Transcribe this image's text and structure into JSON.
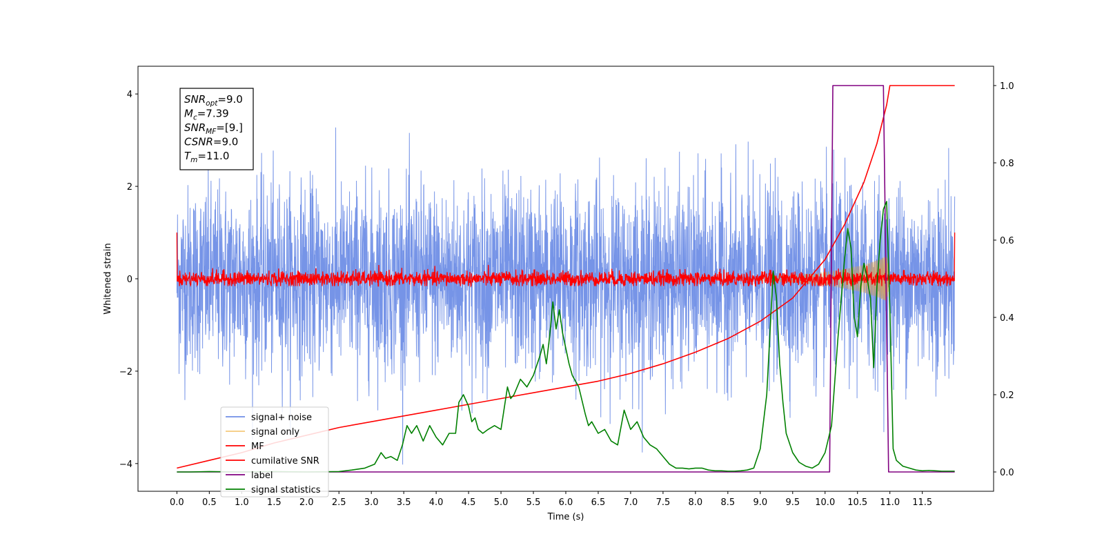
{
  "chart_data": {
    "type": "line",
    "xlabel": "Time (s)",
    "ylabel_left": "Whitened strain",
    "ylabel_right": "",
    "xlim": [
      -0.6,
      12.6
    ],
    "ylim_left": [
      -4.6,
      4.6
    ],
    "ylim_right": [
      -0.05,
      1.05
    ],
    "x_ticks": [
      0.0,
      0.5,
      1.0,
      1.5,
      2.0,
      2.5,
      3.0,
      3.5,
      4.0,
      4.5,
      5.0,
      5.5,
      6.0,
      6.5,
      7.0,
      7.5,
      8.0,
      8.5,
      9.0,
      9.5,
      10.0,
      10.5,
      11.0,
      11.5
    ],
    "x_tick_labels": [
      "0.0",
      "0.5",
      "1.0",
      "1.5",
      "2.0",
      "2.5",
      "3.0",
      "3.5",
      "4.0",
      "4.5",
      "5.0",
      "5.5",
      "6.0",
      "6.5",
      "7.0",
      "7.5",
      "8.0",
      "8.5",
      "9.0",
      "9.5",
      "10.0",
      "10.5",
      "11.0",
      "11.5"
    ],
    "y_left_ticks": [
      -4,
      -2,
      0,
      2,
      4
    ],
    "y_left_tick_labels": [
      "−4",
      "−2",
      "0",
      "2",
      "4"
    ],
    "y_right_ticks": [
      0.0,
      0.2,
      0.4,
      0.6,
      0.8,
      1.0
    ],
    "y_right_tick_labels": [
      "0.0",
      "0.2",
      "0.4",
      "0.6",
      "0.8",
      "1.0"
    ],
    "grid": false,
    "legend_position": "lower-left",
    "info_box": {
      "position": "top-left",
      "lines": [
        {
          "main": "SNR",
          "sub": "opt",
          "rest": "=9.0"
        },
        {
          "main": "M",
          "sub": "c",
          "rest": "=7.39"
        },
        {
          "main": "SNR",
          "sub": "MF",
          "rest": "=[9.]"
        },
        {
          "main": "CSNR",
          "sub": "",
          "rest": "=9.0"
        },
        {
          "main": "T",
          "sub": "m",
          "rest": "=11.0"
        }
      ]
    },
    "series": [
      {
        "name": "signal+ noise",
        "color": "#6f8ee6",
        "axis": "left",
        "kind": "noise",
        "x_range": [
          0.0,
          12.0
        ],
        "amplitude_typical": 1.0,
        "amplitude_peak": 4.1,
        "values_summary": "random noise centred on 0, peaks between -4.2 and 4.2"
      },
      {
        "name": "signal only",
        "color": "#f5c97a",
        "axis": "left",
        "kind": "chirp",
        "x_range": [
          9.0,
          11.0
        ],
        "envelope": {
          "x": [
            9.0,
            9.5,
            10.0,
            10.3,
            10.6,
            10.85,
            10.95,
            11.0
          ],
          "y": [
            0.05,
            0.08,
            0.14,
            0.2,
            0.3,
            0.42,
            0.5,
            0.0
          ]
        }
      },
      {
        "name": "MF",
        "color": "#ff0000",
        "axis": "left",
        "kind": "noise",
        "x_range": [
          0.0,
          12.0
        ],
        "amplitude_typical": 0.12,
        "amplitude_peak": 0.35,
        "endpoints": {
          "start": 1.0,
          "end": 1.0
        }
      },
      {
        "name": "cumilative SNR",
        "color": "#ff0000",
        "axis": "right",
        "x": [
          0.0,
          0.5,
          1.0,
          1.5,
          2.0,
          2.5,
          3.0,
          3.5,
          4.0,
          4.5,
          5.0,
          5.5,
          6.0,
          6.5,
          7.0,
          7.5,
          8.0,
          8.5,
          9.0,
          9.5,
          10.0,
          10.3,
          10.6,
          10.8,
          10.95,
          11.0,
          12.0
        ],
        "values": [
          0.01,
          0.03,
          0.05,
          0.075,
          0.095,
          0.115,
          0.13,
          0.145,
          0.16,
          0.175,
          0.19,
          0.205,
          0.22,
          0.235,
          0.255,
          0.28,
          0.31,
          0.345,
          0.39,
          0.45,
          0.55,
          0.64,
          0.75,
          0.85,
          0.95,
          1.0,
          1.0
        ]
      },
      {
        "name": "label",
        "color": "#800080",
        "axis": "right",
        "x": [
          0.0,
          10.07,
          10.07,
          10.12,
          10.9,
          10.9,
          10.98,
          11.0,
          12.0
        ],
        "values": [
          0.0,
          0.0,
          0.0,
          1.0,
          1.0,
          1.0,
          0.0,
          0.0,
          0.0
        ]
      },
      {
        "name": "signal statistics",
        "color": "#008000",
        "axis": "right",
        "x": [
          0.0,
          0.2,
          0.5,
          1.0,
          1.5,
          2.0,
          2.5,
          2.7,
          2.9,
          3.05,
          3.15,
          3.22,
          3.3,
          3.4,
          3.48,
          3.55,
          3.62,
          3.7,
          3.8,
          3.9,
          4.0,
          4.1,
          4.2,
          4.3,
          4.35,
          4.42,
          4.5,
          4.55,
          4.6,
          4.65,
          4.72,
          4.8,
          4.9,
          5.0,
          5.1,
          5.15,
          5.2,
          5.3,
          5.4,
          5.5,
          5.6,
          5.65,
          5.7,
          5.75,
          5.8,
          5.85,
          5.9,
          5.95,
          6.0,
          6.05,
          6.1,
          6.2,
          6.3,
          6.35,
          6.4,
          6.5,
          6.6,
          6.7,
          6.8,
          6.9,
          7.0,
          7.1,
          7.2,
          7.3,
          7.4,
          7.5,
          7.6,
          7.7,
          7.8,
          7.9,
          8.0,
          8.1,
          8.2,
          8.3,
          8.4,
          8.5,
          8.6,
          8.7,
          8.8,
          8.9,
          9.0,
          9.1,
          9.2,
          9.25,
          9.3,
          9.35,
          9.4,
          9.5,
          9.6,
          9.7,
          9.8,
          9.9,
          10.0,
          10.1,
          10.2,
          10.3,
          10.35,
          10.4,
          10.45,
          10.5,
          10.55,
          10.6,
          10.65,
          10.7,
          10.75,
          10.8,
          10.85,
          10.9,
          10.95,
          11.0,
          11.05,
          11.1,
          11.2,
          11.3,
          11.4,
          11.5,
          11.6,
          11.7,
          11.8,
          11.9,
          12.0
        ],
        "values": [
          0.0,
          0.0,
          0.001,
          0.0,
          0.001,
          0.0,
          0.001,
          0.005,
          0.01,
          0.02,
          0.05,
          0.035,
          0.04,
          0.03,
          0.07,
          0.12,
          0.1,
          0.12,
          0.08,
          0.12,
          0.09,
          0.07,
          0.1,
          0.1,
          0.18,
          0.2,
          0.17,
          0.13,
          0.14,
          0.11,
          0.1,
          0.11,
          0.12,
          0.11,
          0.22,
          0.19,
          0.2,
          0.24,
          0.22,
          0.25,
          0.3,
          0.33,
          0.28,
          0.35,
          0.44,
          0.37,
          0.42,
          0.36,
          0.32,
          0.28,
          0.25,
          0.22,
          0.15,
          0.12,
          0.13,
          0.1,
          0.11,
          0.08,
          0.07,
          0.16,
          0.11,
          0.13,
          0.09,
          0.07,
          0.06,
          0.04,
          0.02,
          0.01,
          0.01,
          0.008,
          0.01,
          0.01,
          0.005,
          0.003,
          0.003,
          0.002,
          0.002,
          0.003,
          0.005,
          0.01,
          0.06,
          0.2,
          0.52,
          0.45,
          0.28,
          0.18,
          0.1,
          0.05,
          0.025,
          0.015,
          0.01,
          0.02,
          0.05,
          0.12,
          0.35,
          0.55,
          0.63,
          0.58,
          0.4,
          0.35,
          0.48,
          0.54,
          0.5,
          0.45,
          0.27,
          0.48,
          0.6,
          0.68,
          0.7,
          0.42,
          0.06,
          0.03,
          0.015,
          0.01,
          0.005,
          0.003,
          0.004,
          0.003,
          0.002,
          0.002,
          0.002
        ]
      }
    ]
  }
}
